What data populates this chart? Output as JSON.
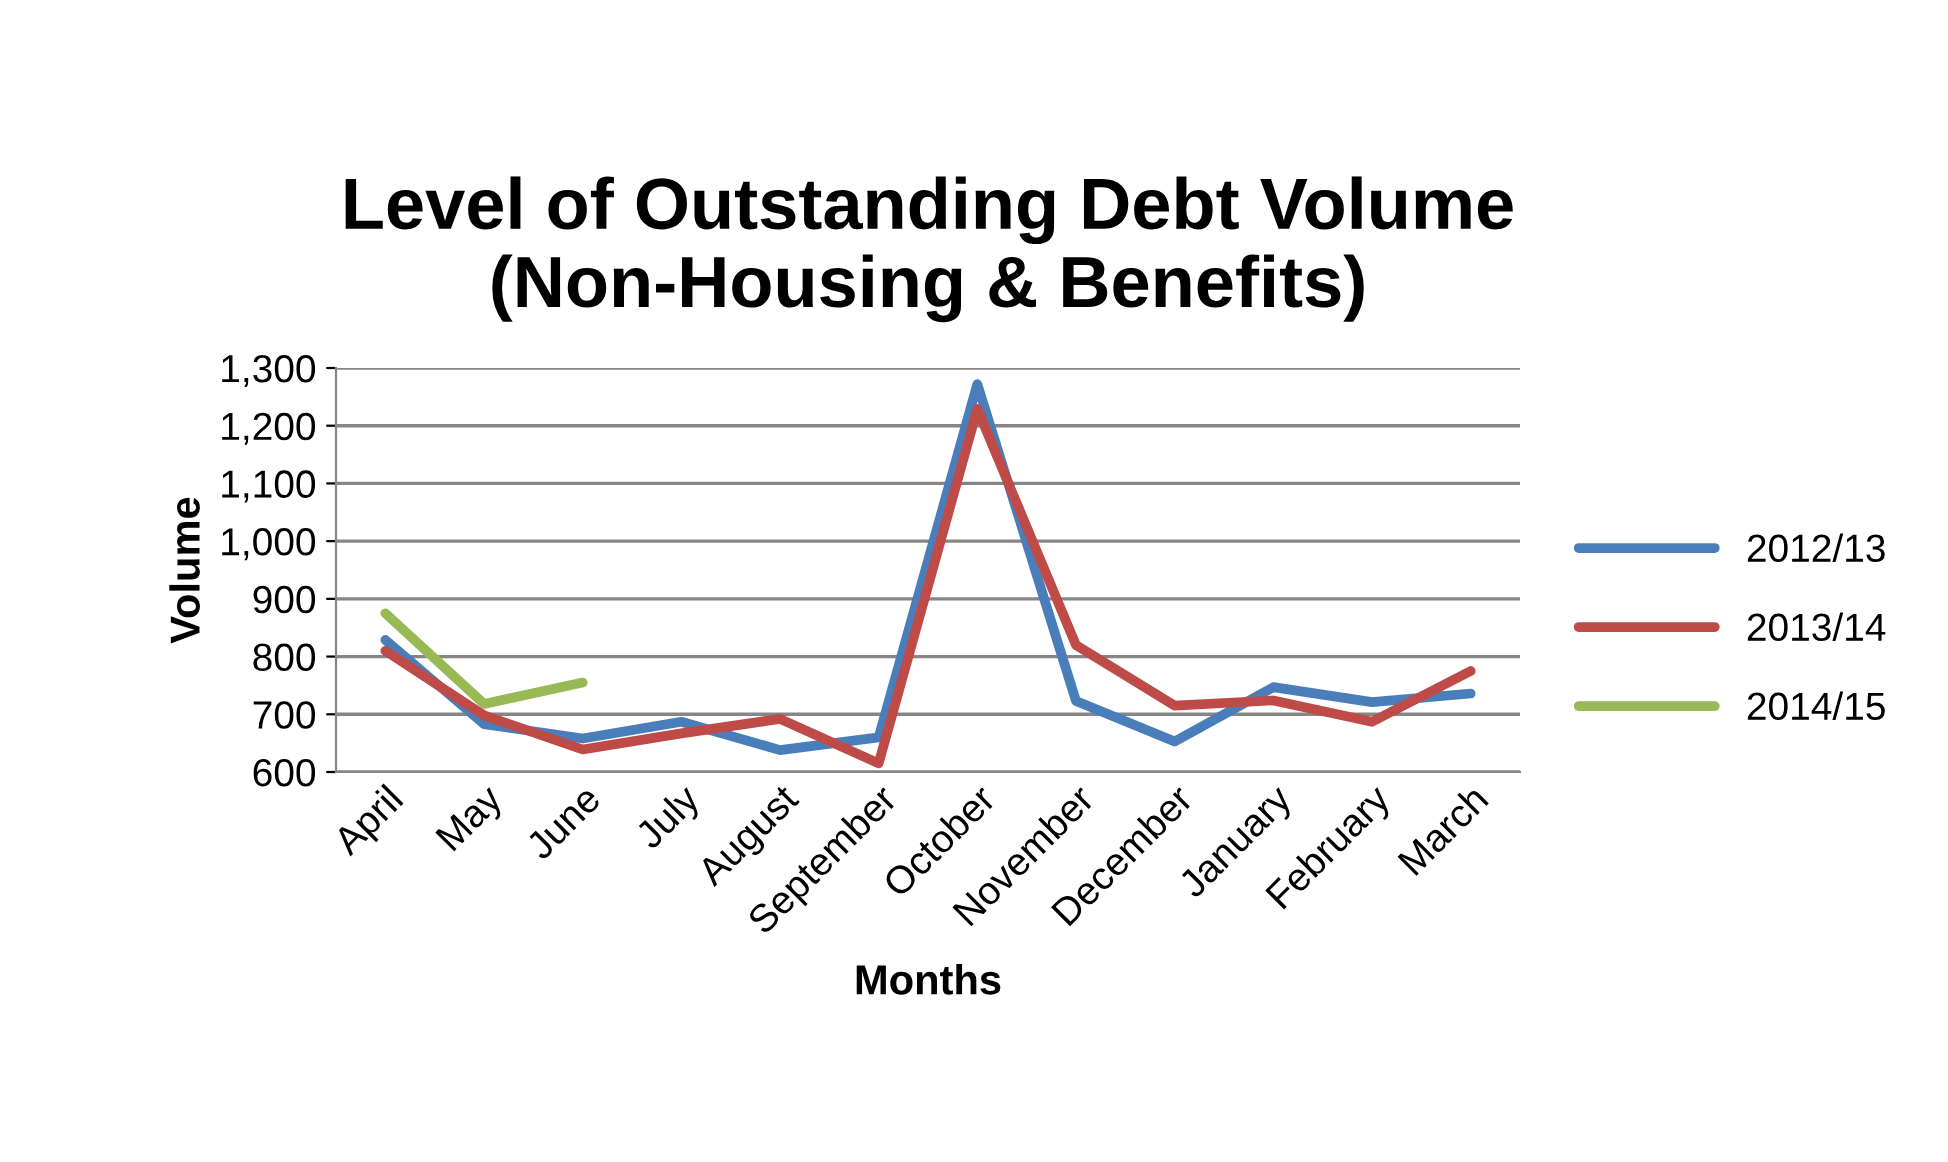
{
  "chart_data": {
    "type": "line",
    "title": "Level of Outstanding Debt Volume\n(Non-Housing & Benefits)",
    "xlabel": "Months",
    "ylabel": "Volume",
    "categories": [
      "April",
      "May",
      "June",
      "July",
      "August",
      "September",
      "October",
      "November",
      "December",
      "January",
      "February",
      "March"
    ],
    "series": [
      {
        "name": "2012/13",
        "color": "#4a7ebb",
        "values": [
          829,
          683,
          658,
          687,
          638,
          660,
          1272,
          723,
          653,
          747,
          721,
          736
        ]
      },
      {
        "name": "2013/14",
        "color": "#be4b48",
        "values": [
          810,
          698,
          639,
          667,
          692,
          615,
          1229,
          820,
          715,
          724,
          687,
          775
        ]
      },
      {
        "name": "2014/15",
        "color": "#98b954",
        "values": [
          875,
          718,
          755,
          null,
          null,
          null,
          null,
          null,
          null,
          null,
          null,
          null
        ]
      }
    ],
    "ylim": [
      600,
      1300
    ],
    "yticks": [
      {
        "value": 600,
        "label": "600"
      },
      {
        "value": 700,
        "label": "700"
      },
      {
        "value": 800,
        "label": "800"
      },
      {
        "value": 900,
        "label": "900"
      },
      {
        "value": 1000,
        "label": "1,000"
      },
      {
        "value": 1100,
        "label": "1,100"
      },
      {
        "value": 1200,
        "label": "1,200"
      },
      {
        "value": 1300,
        "label": "1,300"
      }
    ],
    "grid": "y",
    "legend": "right",
    "marker": "none",
    "line_style": "solid"
  }
}
